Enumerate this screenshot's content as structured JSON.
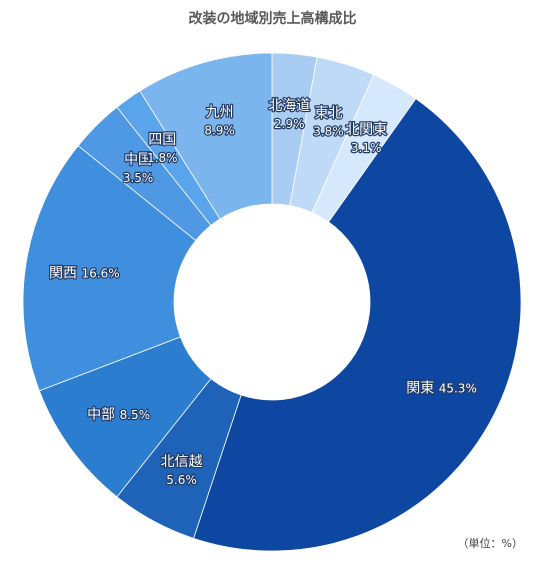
{
  "chart_data": {
    "type": "pie",
    "donut": true,
    "title": "改装の地域別売上高構成比",
    "unit_note": "（単位：%）",
    "start_angle_deg": 0,
    "direction": "clockwise",
    "slices": [
      {
        "name": "北海道",
        "value": 2.9,
        "pct_label": "2.9%",
        "color": "#a9cdf2",
        "layout": "two-line"
      },
      {
        "name": "東北",
        "value": 3.8,
        "pct_label": "3.8%",
        "color": "#bfdaf7",
        "layout": "two-line"
      },
      {
        "name": "北関東",
        "value": 3.1,
        "pct_label": "3.1%",
        "color": "#d6e8fb",
        "layout": "two-line"
      },
      {
        "name": "関東",
        "value": 45.3,
        "pct_label": "45.3%",
        "color": "#0d47a1",
        "layout": "one-line"
      },
      {
        "name": "北信越",
        "value": 5.6,
        "pct_label": "5.6%",
        "color": "#1e63b8",
        "layout": "two-line"
      },
      {
        "name": "中部",
        "value": 8.5,
        "pct_label": "8.5%",
        "color": "#2b7dd0",
        "layout": "one-line"
      },
      {
        "name": "関西",
        "value": 16.6,
        "pct_label": "16.6%",
        "color": "#3f8fde",
        "layout": "one-line"
      },
      {
        "name": "中国",
        "value": 3.5,
        "pct_label": "3.5%",
        "color": "#4f98e3",
        "layout": "two-line"
      },
      {
        "name": "四国",
        "value": 1.8,
        "pct_label": "1.8%",
        "color": "#5aa4ec",
        "layout": "two-line"
      },
      {
        "name": "九州",
        "value": 8.9,
        "pct_label": "8.9%",
        "color": "#7ab5ee",
        "layout": "two-line"
      }
    ]
  }
}
